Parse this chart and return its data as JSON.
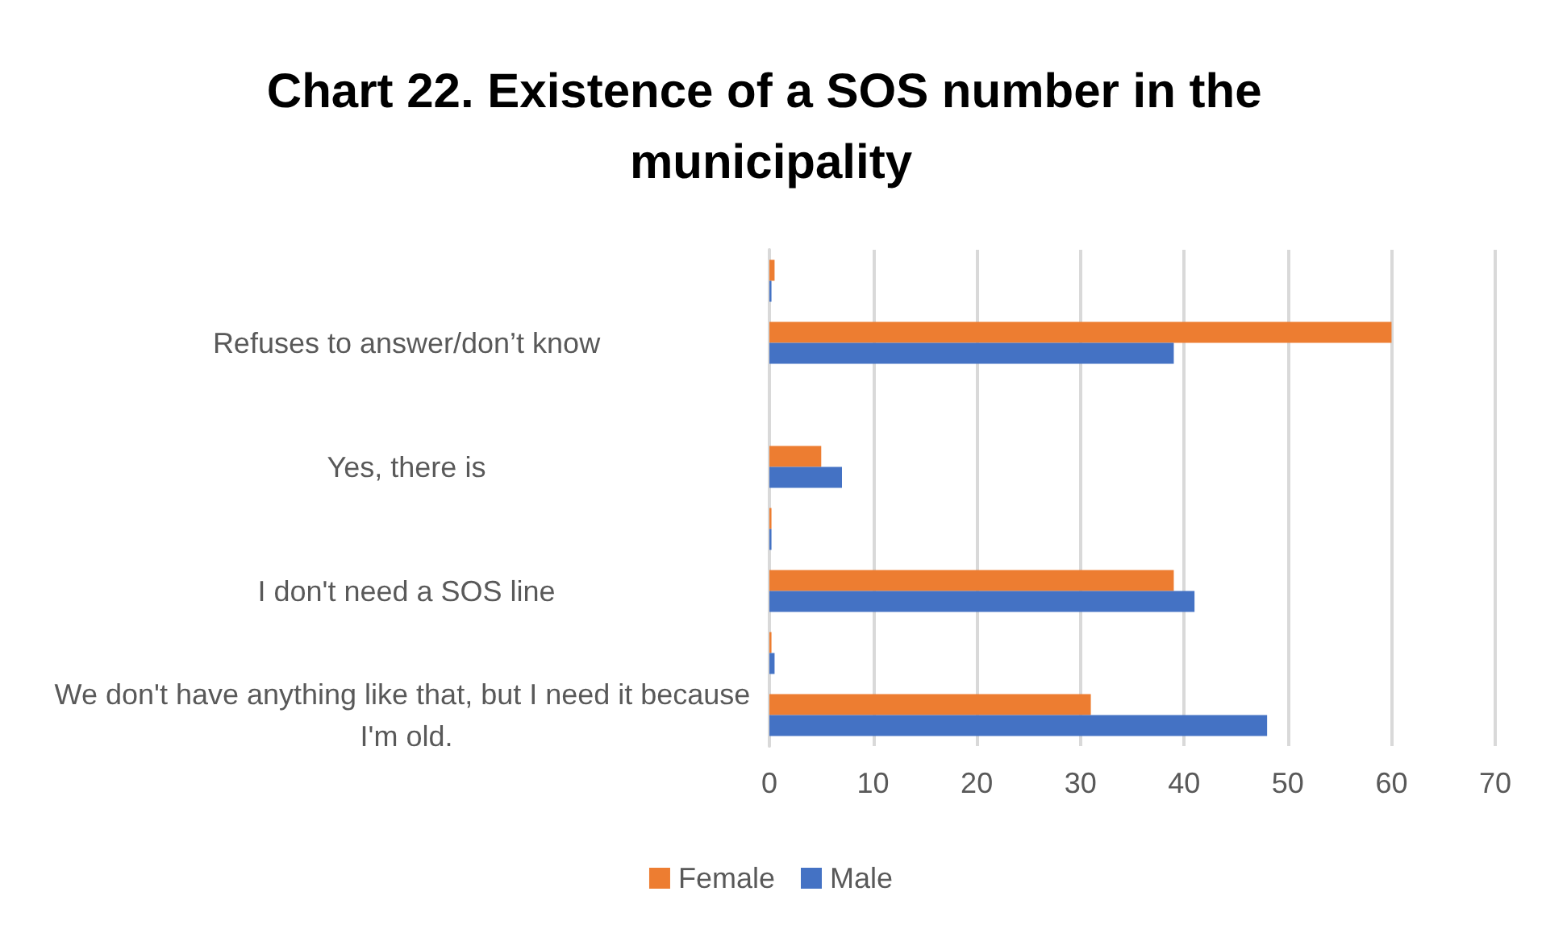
{
  "chart_data": {
    "type": "bar",
    "orientation": "horizontal",
    "title": "Chart 22. Existence of a SOS number in the municipality",
    "categories": [
      null,
      "Refuses to answer/don’t know",
      null,
      "Yes, there is",
      null,
      "I don't need a SOS line",
      null,
      "We don't have anything like that, but I need it because I'm old."
    ],
    "series": [
      {
        "name": "Female",
        "color": "#ed7d31",
        "values": [
          0.5,
          60,
          null,
          5,
          0.2,
          39,
          0.2,
          31
        ]
      },
      {
        "name": "Male",
        "color": "#4472c4",
        "values": [
          0.2,
          39,
          null,
          7,
          0.2,
          41,
          0.5,
          48
        ]
      }
    ],
    "xlim": [
      0,
      70
    ],
    "xticks": [
      0,
      10,
      20,
      30,
      40,
      50,
      60,
      70
    ],
    "grid": "x",
    "legend": "bottom"
  }
}
